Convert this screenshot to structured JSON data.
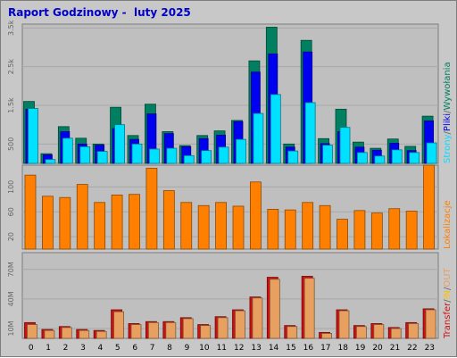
{
  "title": "Raport Godzinowy -  luty 2025",
  "colors": {
    "background": "#c8c8c8",
    "panel": "#bfbfbf",
    "grid": "#a8a8a8",
    "title": "#0000c8",
    "hits": "#008060",
    "files": "#0000f0",
    "pages": "#00e0ff",
    "visits": "#ff8000",
    "kbytes": "#d01010",
    "kbytes_in": "#ffc000",
    "kbytes_out": "#e8a060",
    "axis_text": "#666666"
  },
  "chart_data": [
    {
      "type": "bar",
      "categories": [
        "0",
        "1",
        "2",
        "3",
        "4",
        "5",
        "6",
        "7",
        "8",
        "9",
        "10",
        "11",
        "12",
        "13",
        "14",
        "15",
        "16",
        "17",
        "18",
        "19",
        "20",
        "21",
        "22",
        "23"
      ],
      "ytick_labels": [
        "500",
        "1.5k",
        "2.5k",
        "3.5k"
      ],
      "ytick_values": [
        500,
        1500,
        2500,
        3500
      ],
      "ylim": [
        0,
        3600
      ],
      "legend": [
        {
          "label": "Strony",
          "color_key": "pages"
        },
        {
          "label": "/",
          "color_key": "axis_text"
        },
        {
          "label": "Pliki",
          "color_key": "files"
        },
        {
          "label": "/",
          "color_key": "axis_text"
        },
        {
          "label": "Wywołania",
          "color_key": "hits"
        }
      ],
      "series": [
        {
          "key": "hits",
          "values": [
            1600,
            250,
            950,
            650,
            500,
            1450,
            720,
            1530,
            820,
            460,
            720,
            840,
            1110,
            2650,
            3520,
            500,
            3180,
            640,
            1400,
            550,
            390,
            630,
            440,
            1220
          ]
        },
        {
          "key": "files",
          "values": [
            1400,
            220,
            820,
            500,
            470,
            900,
            620,
            1280,
            770,
            430,
            640,
            730,
            1080,
            2360,
            2830,
            420,
            2880,
            510,
            820,
            420,
            340,
            520,
            330,
            1100
          ]
        },
        {
          "key": "pages",
          "values": [
            1420,
            100,
            650,
            430,
            310,
            1000,
            500,
            370,
            390,
            200,
            330,
            420,
            620,
            1290,
            1780,
            320,
            1570,
            470,
            930,
            280,
            190,
            350,
            280,
            530
          ]
        }
      ]
    },
    {
      "type": "bar",
      "categories": [
        "0",
        "1",
        "2",
        "3",
        "4",
        "5",
        "6",
        "7",
        "8",
        "9",
        "10",
        "11",
        "12",
        "13",
        "14",
        "15",
        "16",
        "17",
        "18",
        "19",
        "20",
        "21",
        "22",
        "23"
      ],
      "ytick_labels": [
        "20",
        "60",
        "100"
      ],
      "ytick_values": [
        20,
        60,
        100
      ],
      "ylim": [
        0,
        135
      ],
      "legend": [
        {
          "label": "Lokalizacje",
          "color_key": "visits"
        }
      ],
      "series": [
        {
          "key": "visits",
          "values": [
            119,
            85,
            83,
            104,
            75,
            87,
            88,
            130,
            94,
            75,
            70,
            75,
            69,
            108,
            64,
            63,
            75,
            70,
            48,
            62,
            58,
            65,
            61,
            135
          ]
        }
      ]
    },
    {
      "type": "bar",
      "categories": [
        "0",
        "1",
        "2",
        "3",
        "4",
        "5",
        "6",
        "7",
        "8",
        "9",
        "10",
        "11",
        "12",
        "13",
        "14",
        "15",
        "16",
        "17",
        "18",
        "19",
        "20",
        "21",
        "22",
        "23"
      ],
      "ytick_labels": [
        "10M",
        "40M",
        "70M"
      ],
      "ytick_values": [
        10,
        40,
        70
      ],
      "ylim": [
        0,
        87
      ],
      "unit": "M",
      "legend": [
        {
          "label": "Transfer",
          "color_key": "kbytes"
        },
        {
          "label": "/",
          "color_key": "axis_text"
        },
        {
          "label": "IN",
          "color_key": "kbytes_in"
        },
        {
          "label": "/",
          "color_key": "axis_text"
        },
        {
          "label": "OUT",
          "color_key": "kbytes_out"
        }
      ],
      "series": [
        {
          "key": "kbytes",
          "values": [
            16,
            9,
            12,
            9,
            8,
            29,
            15,
            17,
            17,
            21,
            14,
            22,
            29,
            42,
            62,
            13,
            63,
            6,
            29,
            13,
            15,
            11,
            16,
            30
          ]
        },
        {
          "key": "kbytes_out",
          "values": [
            14,
            8,
            11,
            8,
            7,
            27,
            14,
            16,
            16,
            20,
            13,
            21,
            28,
            41,
            60,
            12,
            61,
            5,
            28,
            12,
            14,
            10,
            15,
            29
          ]
        }
      ]
    }
  ]
}
